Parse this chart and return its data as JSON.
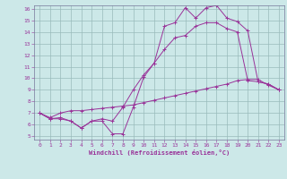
{
  "bg_color": "#cce8e8",
  "line_color": "#993399",
  "grid_color": "#99bbbb",
  "xlim": [
    0,
    23
  ],
  "ylim": [
    5,
    16
  ],
  "xticks": [
    0,
    1,
    2,
    3,
    4,
    5,
    6,
    7,
    8,
    9,
    10,
    11,
    12,
    13,
    14,
    15,
    16,
    17,
    18,
    19,
    20,
    21,
    22,
    23
  ],
  "yticks": [
    5,
    6,
    7,
    8,
    9,
    10,
    11,
    12,
    13,
    14,
    15,
    16
  ],
  "xlabel": "Windchill (Refroidissement éolien,°C)",
  "line1_x": [
    0,
    1,
    2,
    3,
    4,
    5,
    6,
    7,
    8,
    9,
    10,
    11,
    12,
    13,
    14,
    15,
    16,
    17,
    18,
    19,
    20,
    21,
    22,
    23
  ],
  "line1_y": [
    7.0,
    6.5,
    6.5,
    6.3,
    5.7,
    6.3,
    6.3,
    5.2,
    5.2,
    7.5,
    10.1,
    11.3,
    14.5,
    14.8,
    16.1,
    15.2,
    16.1,
    16.3,
    15.2,
    14.9,
    14.1,
    9.7,
    9.5,
    9.0
  ],
  "line2_x": [
    0,
    1,
    2,
    3,
    4,
    5,
    6,
    7,
    8,
    9,
    10,
    11,
    12,
    13,
    14,
    15,
    16,
    17,
    18,
    19,
    20,
    21,
    22,
    23
  ],
  "line2_y": [
    7.0,
    6.6,
    7.0,
    7.2,
    7.2,
    7.3,
    7.4,
    7.5,
    7.6,
    7.7,
    7.9,
    8.1,
    8.3,
    8.5,
    8.7,
    8.9,
    9.1,
    9.3,
    9.5,
    9.8,
    9.9,
    9.9,
    9.4,
    9.0
  ],
  "line3_x": [
    0,
    1,
    2,
    3,
    4,
    5,
    6,
    7,
    8,
    9,
    10,
    11,
    12,
    13,
    14,
    15,
    16,
    17,
    18,
    19,
    20,
    21,
    22,
    23
  ],
  "line3_y": [
    7.0,
    6.5,
    6.6,
    6.3,
    5.7,
    6.3,
    6.5,
    6.3,
    7.5,
    9.0,
    10.3,
    11.3,
    12.5,
    13.5,
    13.7,
    14.5,
    14.8,
    14.8,
    14.3,
    14.0,
    9.8,
    9.7,
    9.5,
    9.0
  ]
}
